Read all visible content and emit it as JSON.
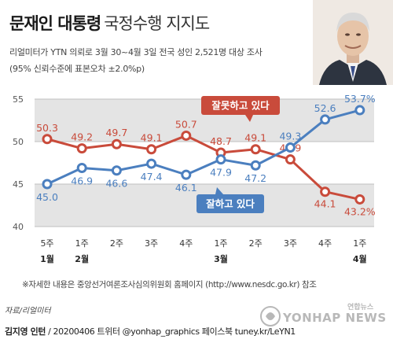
{
  "title_bold": "문재인 대통령",
  "title_light": "국정수행 지지도",
  "subtitle_line1": "리얼미터가 YTN 의뢰로 3월 30~4월 3일 전국 성인 2,521명 대상 조사",
  "subtitle_line2": "(95% 신뢰수준에 표본오차 ±2.0%p)",
  "note": "※자세한 내용은 중앙선거여론조사심의위원회 홈페이지 (http://www.nesdc.go.kr) 참조",
  "source": "자료/리얼미터",
  "credit_author": "김지영 인턴",
  "credit_rest": " / 20200406 트위터 @yonhap_graphics  페이스북 tuney.kr/LeYN1",
  "logo": {
    "brand": "YONHAP NEWS",
    "brand_small": "연합뉴스"
  },
  "colors": {
    "approve": "#4b7fbf",
    "disapprove": "#c94b3b",
    "band": "#e4e4e4",
    "grid": "#bfbfbf"
  },
  "chart_data": {
    "type": "line",
    "x": [
      "5주",
      "1주",
      "2주",
      "3주",
      "4주",
      "1주",
      "2주",
      "3주",
      "4주",
      "1주"
    ],
    "month_labels": [
      "1월",
      "2월",
      "",
      "",
      "",
      "3월",
      "",
      "",
      "",
      "4월"
    ],
    "ylim": [
      40,
      55
    ],
    "yticks": [
      40,
      45,
      50,
      55
    ],
    "grid": true,
    "series": [
      {
        "name": "잘못하고 있다",
        "color": "#c94b3b",
        "values": [
          50.3,
          49.2,
          49.7,
          49.1,
          50.7,
          48.7,
          49.1,
          47.9,
          44.1,
          43.2
        ],
        "labels": [
          "50.3",
          "49.2",
          "49.7",
          "49.1",
          "50.7",
          "48.7",
          "49.1",
          "47.9",
          "44.1",
          "43.2%"
        ]
      },
      {
        "name": "잘하고 있다",
        "color": "#4b7fbf",
        "values": [
          45.0,
          46.9,
          46.6,
          47.4,
          46.1,
          47.9,
          47.2,
          49.3,
          52.6,
          53.7
        ],
        "labels": [
          "45.0",
          "46.9",
          "46.6",
          "47.4",
          "46.1",
          "47.9",
          "47.2",
          "49.3",
          "52.6",
          "53.7%"
        ]
      }
    ]
  }
}
